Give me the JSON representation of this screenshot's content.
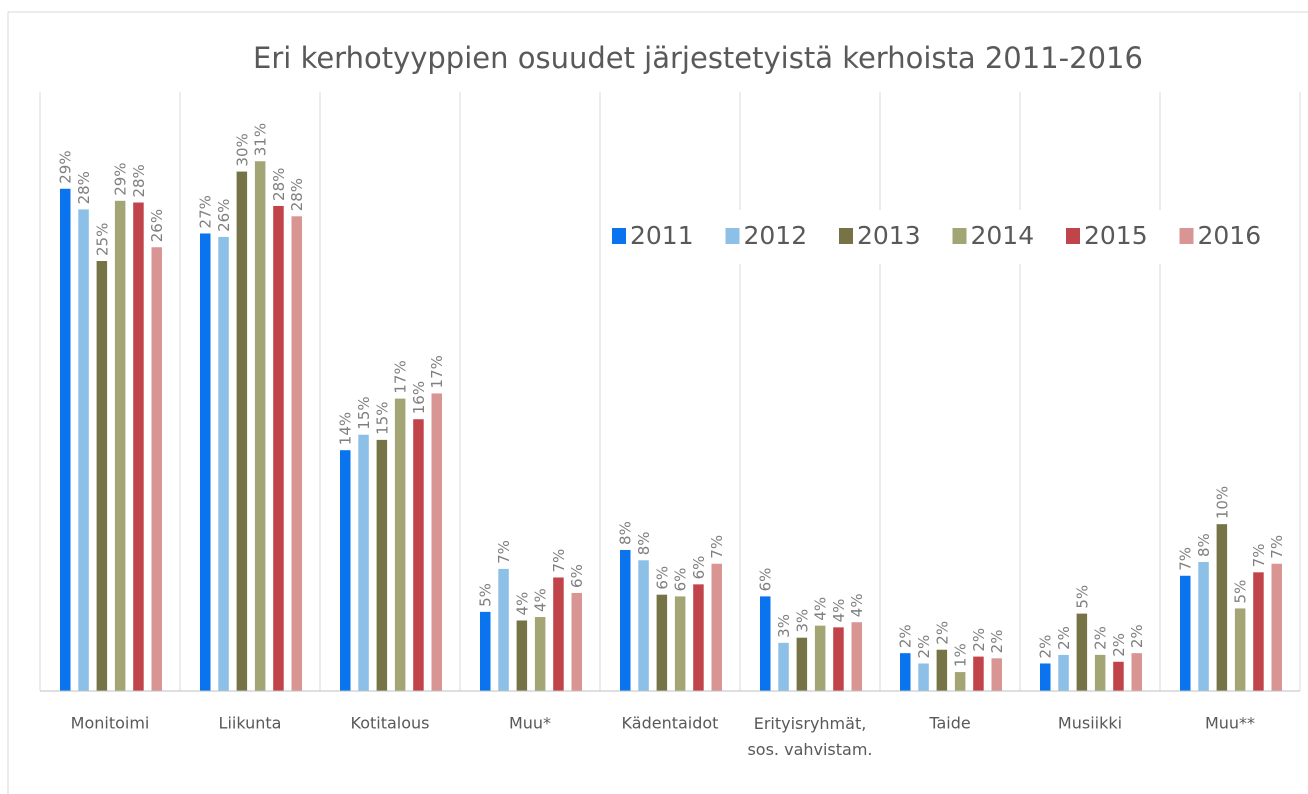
{
  "chart_data": {
    "type": "bar",
    "title": "Eri kerhotyyppien osuudet järjestetyistä kerhoista 2011-2016",
    "categories": [
      "Monitoimi",
      "Liikunta",
      "Kotitalous",
      "Muu*",
      "Kädentaidot",
      "Erityisryhmät,\nsos. vahvistam.",
      "Taide",
      "Musiikki",
      "Muu**"
    ],
    "ylim": [
      0,
      35
    ],
    "legend": "upper right",
    "series": [
      {
        "name": "2011",
        "color": "#0a74ee",
        "values": [
          29.2,
          26.6,
          14.0,
          4.6,
          8.2,
          5.5,
          2.2,
          1.6,
          6.7
        ],
        "value_labels": [
          "29%",
          "27%",
          "14%",
          "5%",
          "8%",
          "6%",
          "2%",
          "2%",
          "7%"
        ]
      },
      {
        "name": "2012",
        "color": "#8dc0e6",
        "values": [
          28.0,
          26.4,
          14.9,
          7.1,
          7.6,
          2.8,
          1.6,
          2.1,
          7.5
        ],
        "value_labels": [
          "28%",
          "26%",
          "15%",
          "7%",
          "8%",
          "3%",
          "2%",
          "2%",
          "8%"
        ]
      },
      {
        "name": "2013",
        "color": "#767346",
        "values": [
          25.0,
          30.2,
          14.6,
          4.1,
          5.6,
          3.1,
          2.4,
          4.5,
          9.7
        ],
        "value_labels": [
          "25%",
          "30%",
          "15%",
          "4%",
          "6%",
          "3%",
          "2%",
          "5%",
          "10%"
        ]
      },
      {
        "name": "2014",
        "color": "#a3a575",
        "values": [
          28.5,
          30.8,
          17.0,
          4.3,
          5.5,
          3.8,
          1.1,
          2.1,
          4.8
        ],
        "value_labels": [
          "29%",
          "31%",
          "17%",
          "4%",
          "6%",
          "4%",
          "1%",
          "2%",
          "5%"
        ]
      },
      {
        "name": "2015",
        "color": "#c0444a",
        "values": [
          28.4,
          28.2,
          15.8,
          6.6,
          6.2,
          3.7,
          2.0,
          1.7,
          6.9
        ],
        "value_labels": [
          "28%",
          "28%",
          "16%",
          "7%",
          "6%",
          "4%",
          "2%",
          "2%",
          "7%"
        ]
      },
      {
        "name": "2016",
        "color": "#d99594",
        "values": [
          25.8,
          27.6,
          17.3,
          5.7,
          7.4,
          4.0,
          1.9,
          2.2,
          7.4
        ],
        "value_labels": [
          "26%",
          "28%",
          "17%",
          "6%",
          "7%",
          "4%",
          "2%",
          "2%",
          "7%"
        ]
      }
    ]
  }
}
